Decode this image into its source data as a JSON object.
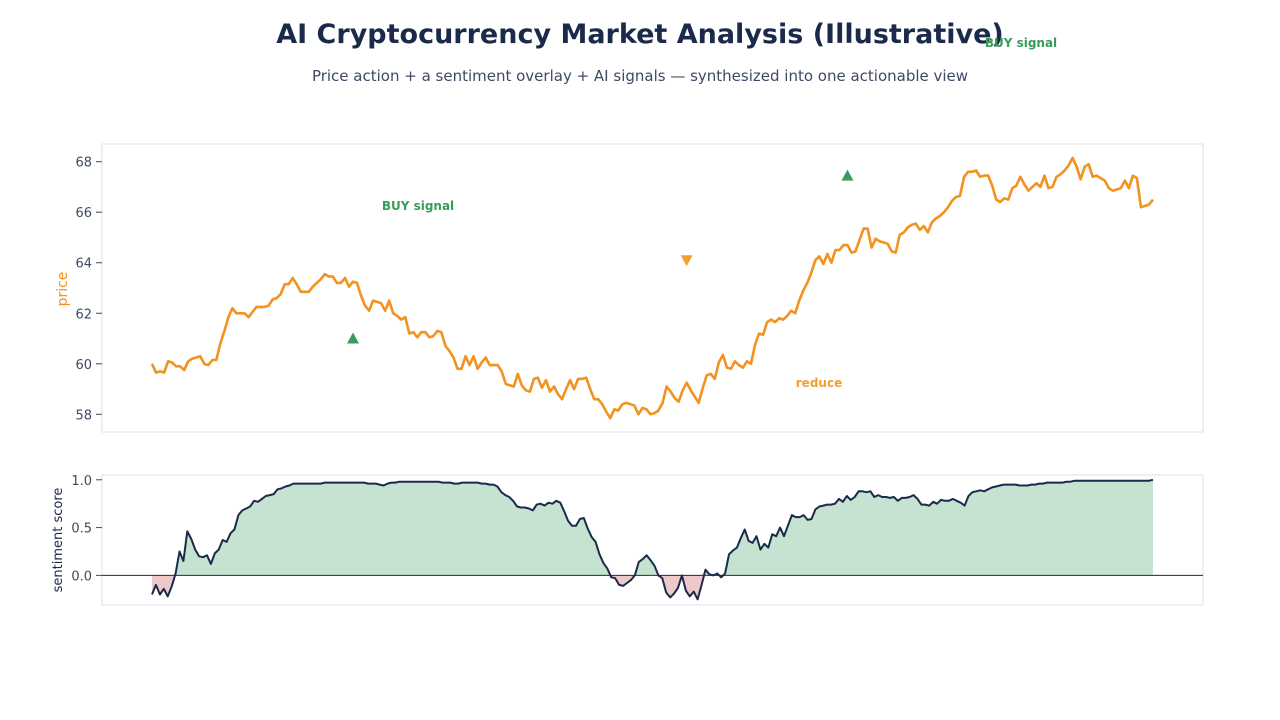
{
  "title": "AI Cryptocurrency Market Analysis (Illustrative)",
  "subtitle": "Price action + a sentiment overlay + AI signals — synthesized into one actionable view",
  "colors": {
    "title": "#1b2a4a",
    "subtitle": "#3d4a63",
    "price_line": "#f2921f",
    "sentiment_line": "#1b2a4a",
    "sentiment_pos_fill": "#c5e3d0",
    "sentiment_neg_fill": "#eec9c9",
    "buy_marker": "#3a9c5c",
    "reduce_marker": "#f0a030",
    "axis_frame": "#dcdfe8",
    "tick_text": "#3d4a63"
  },
  "chart_data": [
    {
      "type": "line",
      "title": "",
      "xlabel": "",
      "ylabel": "price",
      "ylim": [
        57.3,
        68.7
      ],
      "yticks": [
        "58",
        "60",
        "62",
        "64",
        "66",
        "68"
      ],
      "grid": false,
      "series": [
        {
          "values": [
            60.0,
            59.65,
            59.7,
            59.65,
            60.1,
            60.05,
            59.9,
            59.9,
            59.75,
            60.1,
            60.2,
            60.25,
            60.3,
            60.0,
            59.95,
            60.15,
            60.15,
            60.8,
            61.3,
            61.85,
            62.2,
            62.0,
            62.0,
            62.0,
            61.85,
            62.05,
            62.25,
            62.25,
            62.25,
            62.3,
            62.55,
            62.6,
            62.75,
            63.15,
            63.15,
            63.4,
            63.15,
            62.85,
            62.85,
            62.85,
            63.05,
            63.2,
            63.35,
            63.55,
            63.45,
            63.45,
            63.2,
            63.2,
            63.4,
            63.05,
            63.25,
            63.2,
            62.7,
            62.3,
            62.1,
            62.5,
            62.45,
            62.4,
            62.1,
            62.5,
            62.0,
            61.9,
            61.75,
            61.85,
            61.2,
            61.25,
            61.05,
            61.25,
            61.25,
            61.05,
            61.1,
            61.3,
            61.25,
            60.7,
            60.5,
            60.25,
            59.8,
            59.8,
            60.3,
            59.95,
            60.3,
            59.8,
            60.05,
            60.25,
            59.95,
            59.95,
            59.95,
            59.7,
            59.2,
            59.15,
            59.1,
            59.6,
            59.15,
            58.95,
            58.9,
            59.4,
            59.45,
            59.05,
            59.35,
            58.9,
            59.1,
            58.8,
            58.6,
            59.0,
            59.35,
            59.0,
            59.4,
            59.4,
            59.45,
            59.0,
            58.6,
            58.6,
            58.4,
            58.1,
            57.85,
            58.2,
            58.15,
            58.4,
            58.45,
            58.4,
            58.35,
            58.0,
            58.25,
            58.2,
            58.0,
            58.05,
            58.15,
            58.45,
            59.1,
            58.9,
            58.65,
            58.5,
            58.95,
            59.25,
            58.95,
            58.7,
            58.45,
            59.05,
            59.55,
            59.6,
            59.4,
            60.05,
            60.35,
            59.85,
            59.8,
            60.1,
            59.95,
            59.85,
            60.1,
            60.0,
            60.75,
            61.2,
            61.15,
            61.65,
            61.75,
            61.65,
            61.8,
            61.75,
            61.9,
            62.1,
            62.0,
            62.5,
            62.9,
            63.2,
            63.6,
            64.1,
            64.25,
            63.95,
            64.35,
            64.0,
            64.5,
            64.5,
            64.7,
            64.7,
            64.4,
            64.45,
            64.9,
            65.35,
            65.35,
            64.6,
            64.95,
            64.85,
            64.8,
            64.75,
            64.45,
            64.4,
            65.1,
            65.2,
            65.4,
            65.5,
            65.55,
            65.3,
            65.45,
            65.2,
            65.6,
            65.75,
            65.85,
            66.0,
            66.2,
            66.45,
            66.6,
            66.65,
            67.4,
            67.6,
            67.6,
            67.65,
            67.4,
            67.45,
            67.45,
            67.05,
            66.5,
            66.4,
            66.55,
            66.5,
            66.95,
            67.05,
            67.4,
            67.1,
            66.85,
            67.0,
            67.15,
            67.0,
            67.45,
            66.95,
            67.0,
            67.4,
            67.5,
            67.65,
            67.85,
            68.15,
            67.8,
            67.3,
            67.8,
            67.9,
            67.4,
            67.45,
            67.35,
            67.25,
            66.95,
            66.85,
            66.9,
            66.95,
            67.25,
            66.95,
            67.45,
            67.35,
            66.2,
            66.25,
            66.3,
            66.5
          ]
        }
      ],
      "annotations": [
        {
          "label": "BUY signal",
          "kind": "buy",
          "x_index": 50,
          "y": 61.0
        },
        {
          "label": "reduce",
          "kind": "reduce",
          "x_index": 133,
          "y": 64.1
        },
        {
          "label": "BUY signal",
          "kind": "buy",
          "x_index": 173,
          "y": 67.45
        }
      ]
    },
    {
      "type": "area",
      "title": "",
      "xlabel": "",
      "ylabel": "sentiment score",
      "ylim": [
        -0.31,
        1.05
      ],
      "yticks": [
        "0.0",
        "0.5",
        "1.0"
      ],
      "grid": false,
      "baseline": 0,
      "series": [
        {
          "values": [
            -0.2,
            -0.1,
            -0.2,
            -0.14,
            -0.22,
            -0.12,
            0.02,
            0.25,
            0.15,
            0.46,
            0.38,
            0.27,
            0.2,
            0.19,
            0.21,
            0.12,
            0.23,
            0.27,
            0.37,
            0.35,
            0.44,
            0.48,
            0.63,
            0.68,
            0.7,
            0.72,
            0.78,
            0.77,
            0.8,
            0.83,
            0.84,
            0.85,
            0.9,
            0.91,
            0.93,
            0.94,
            0.96,
            0.96,
            0.96,
            0.96,
            0.96,
            0.96,
            0.96,
            0.96,
            0.97,
            0.97,
            0.97,
            0.97,
            0.97,
            0.97,
            0.97,
            0.97,
            0.97,
            0.97,
            0.97,
            0.96,
            0.96,
            0.96,
            0.95,
            0.94,
            0.96,
            0.97,
            0.97,
            0.98,
            0.98,
            0.98,
            0.98,
            0.98,
            0.98,
            0.98,
            0.98,
            0.98,
            0.98,
            0.98,
            0.97,
            0.97,
            0.97,
            0.96,
            0.96,
            0.97,
            0.97,
            0.97,
            0.97,
            0.97,
            0.96,
            0.96,
            0.95,
            0.95,
            0.93,
            0.87,
            0.84,
            0.82,
            0.78,
            0.72,
            0.71,
            0.71,
            0.7,
            0.68,
            0.74,
            0.75,
            0.73,
            0.76,
            0.75,
            0.78,
            0.76,
            0.67,
            0.57,
            0.52,
            0.52,
            0.59,
            0.6,
            0.49,
            0.4,
            0.35,
            0.22,
            0.13,
            0.07,
            -0.02,
            -0.03,
            -0.1,
            -0.11,
            -0.08,
            -0.05,
            0.0,
            0.14,
            0.17,
            0.21,
            0.16,
            0.1,
            0.0,
            -0.03,
            -0.18,
            -0.23,
            -0.19,
            -0.13,
            0.0,
            -0.16,
            -0.22,
            -0.17,
            -0.25,
            -0.1,
            0.06,
            0.01,
            0.0,
            0.02,
            -0.02,
            0.02,
            0.22,
            0.26,
            0.29,
            0.39,
            0.48,
            0.36,
            0.34,
            0.41,
            0.27,
            0.33,
            0.29,
            0.43,
            0.41,
            0.5,
            0.41,
            0.52,
            0.63,
            0.61,
            0.61,
            0.63,
            0.58,
            0.59,
            0.69,
            0.72,
            0.73,
            0.74,
            0.74,
            0.75,
            0.8,
            0.77,
            0.83,
            0.79,
            0.82,
            0.88,
            0.88,
            0.87,
            0.88,
            0.82,
            0.84,
            0.82,
            0.82,
            0.81,
            0.82,
            0.78,
            0.81,
            0.81,
            0.82,
            0.84,
            0.8,
            0.74,
            0.74,
            0.73,
            0.77,
            0.75,
            0.79,
            0.78,
            0.78,
            0.8,
            0.78,
            0.76,
            0.73,
            0.83,
            0.87,
            0.88,
            0.89,
            0.88,
            0.9,
            0.92,
            0.93,
            0.94,
            0.95,
            0.95,
            0.95,
            0.95,
            0.94,
            0.94,
            0.94,
            0.95,
            0.95,
            0.96,
            0.96,
            0.97,
            0.97,
            0.97,
            0.97,
            0.97,
            0.98,
            0.98,
            0.99,
            0.99,
            0.99,
            0.99,
            0.99,
            0.99,
            0.99,
            0.99,
            0.99,
            0.99,
            0.99,
            0.99,
            0.99,
            0.99,
            0.99,
            0.99,
            0.99,
            0.99,
            0.99,
            0.99,
            1.0
          ]
        }
      ]
    }
  ]
}
